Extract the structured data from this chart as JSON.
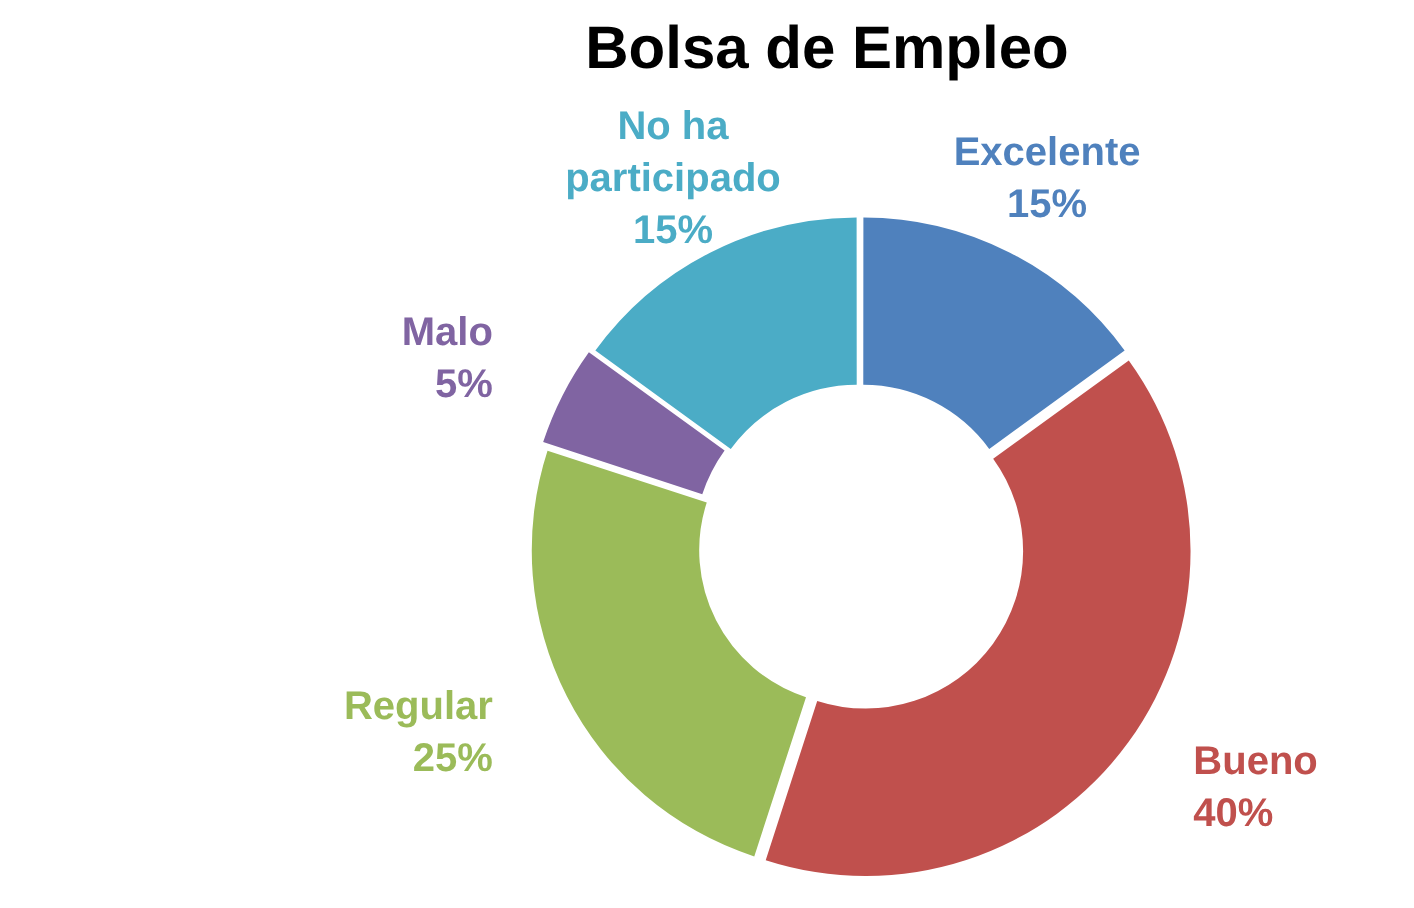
{
  "chart_data": {
    "type": "donut",
    "title": "Bolsa de Empleo",
    "categories": [
      "Excelente",
      "Bueno",
      "Regular",
      "Malo",
      "No ha participado"
    ],
    "values": [
      15,
      40,
      25,
      5,
      15
    ],
    "value_labels": [
      "15%",
      "40%",
      "25%",
      "5%",
      "15%"
    ],
    "colors": [
      "#4f81bd",
      "#c0504d",
      "#9bbb59",
      "#8064a2",
      "#4bacc6"
    ],
    "legend": false
  }
}
